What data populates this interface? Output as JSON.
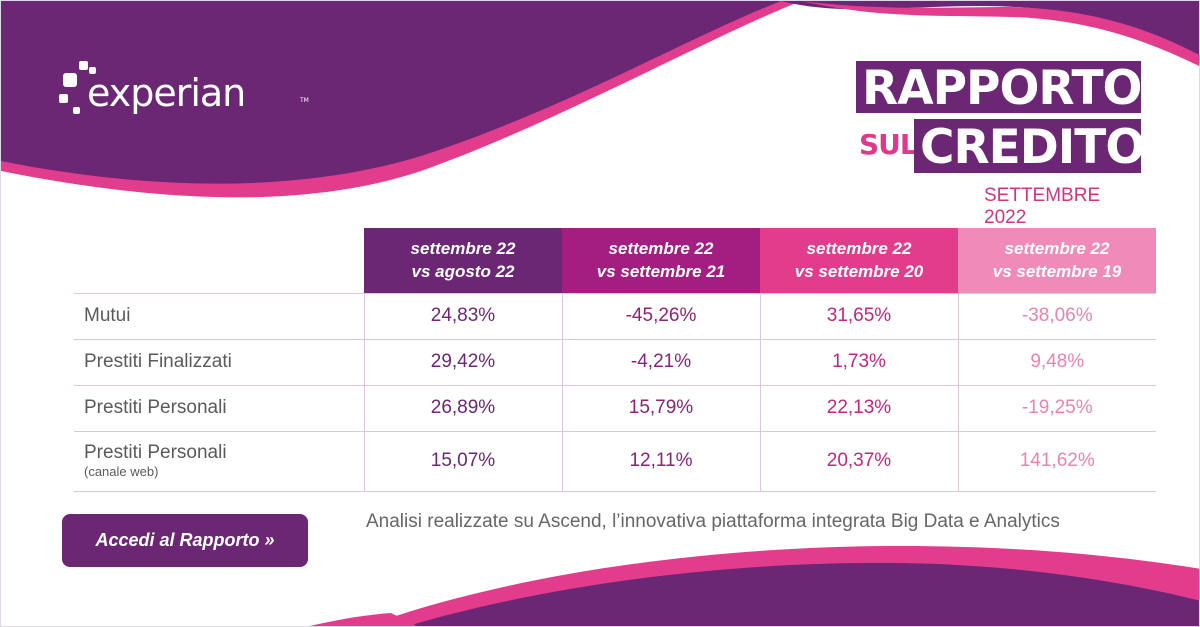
{
  "brand": {
    "logo_text": "experian",
    "logo_tm": "TM"
  },
  "title": {
    "line1": "RAPPORTO",
    "prefix": "SUL",
    "line2": "CREDITO",
    "date": "SETTEMBRE 2022"
  },
  "table": {
    "columns": [
      {
        "line1": "settembre 22",
        "line2": "vs agosto 22"
      },
      {
        "line1": "settembre 22",
        "line2": "vs settembre 21"
      },
      {
        "line1": "settembre 22",
        "line2": "vs settembre 20"
      },
      {
        "line1": "settembre 22",
        "line2": "vs settembre 19"
      }
    ],
    "rows": [
      {
        "label": "Mutui",
        "sublabel": "",
        "values": [
          "24,83%",
          "-45,26%",
          "31,65%",
          "-38,06%"
        ]
      },
      {
        "label": "Prestiti Finalizzati",
        "sublabel": "",
        "values": [
          "29,42%",
          "-4,21%",
          "1,73%",
          "9,48%"
        ]
      },
      {
        "label": "Prestiti Personali",
        "sublabel": "",
        "values": [
          "26,89%",
          "15,79%",
          "22,13%",
          "-19,25%"
        ]
      },
      {
        "label": "Prestiti Personali",
        "sublabel": "(canale web)",
        "values": [
          "15,07%",
          "12,11%",
          "20,37%",
          "141,62%"
        ]
      }
    ]
  },
  "cta": {
    "label": "Accedi al Rapporto »"
  },
  "footnote": "Analisi realizzate su Ascend, l’innovativa piattaforma integrata Big Data e Analytics",
  "colors": {
    "purple": "#6b2674",
    "magenta": "#a41d80",
    "pink": "#e23d8d",
    "light_pink": "#f08bb9"
  }
}
